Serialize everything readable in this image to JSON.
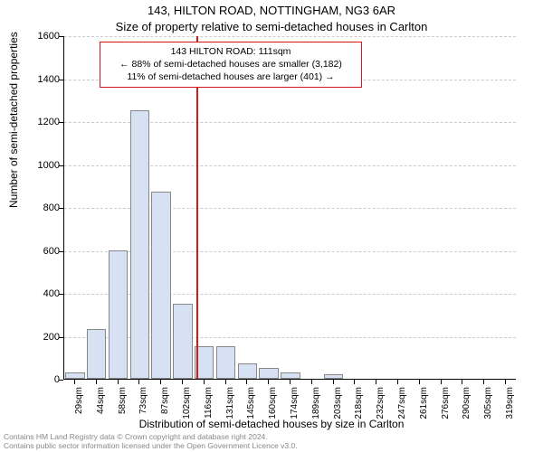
{
  "titles": {
    "line1": "143, HILTON ROAD, NOTTINGHAM, NG3 6AR",
    "line2": "Size of property relative to semi-detached houses in Carlton"
  },
  "axes": {
    "ylabel": "Number of semi-detached properties",
    "xlabel": "Distribution of semi-detached houses by size in Carlton",
    "ylim_min": 0,
    "ylim_max": 1600,
    "ytick_step": 200,
    "grid_color": "#cccccc"
  },
  "chart": {
    "type": "histogram",
    "bar_fill": "#d6e2f3",
    "bar_border": "#888888",
    "background": "#ffffff",
    "reference_line_color": "#d11919",
    "reference_value_sqm": 111,
    "xtick_labels": [
      "29sqm",
      "44sqm",
      "58sqm",
      "73sqm",
      "87sqm",
      "102sqm",
      "116sqm",
      "131sqm",
      "145sqm",
      "160sqm",
      "174sqm",
      "189sqm",
      "203sqm",
      "218sqm",
      "232sqm",
      "247sqm",
      "261sqm",
      "276sqm",
      "290sqm",
      "305sqm",
      "319sqm"
    ],
    "bar_values": [
      30,
      230,
      600,
      1250,
      870,
      350,
      150,
      150,
      70,
      50,
      30,
      0,
      20,
      0,
      0,
      0,
      0,
      0,
      0,
      0,
      0
    ]
  },
  "infobox": {
    "line1": "143 HILTON ROAD: 111sqm",
    "line2": "← 88% of semi-detached houses are smaller (3,182)",
    "line3": "11% of semi-detached houses are larger (401) →"
  },
  "footer": {
    "line1": "Contains HM Land Registry data © Crown copyright and database right 2024.",
    "line2": "Contains public sector information licensed under the Open Government Licence v3.0."
  }
}
